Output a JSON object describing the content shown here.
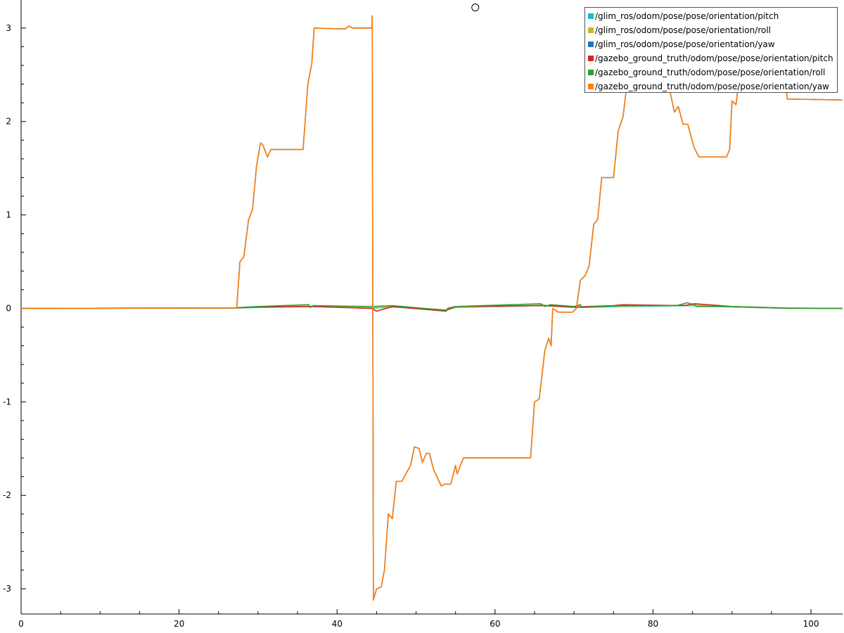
{
  "chart_data": {
    "type": "line",
    "xlim": [
      0,
      104
    ],
    "ylim": [
      -3.27,
      3.3
    ],
    "xticks": [
      0,
      20,
      40,
      60,
      80,
      100
    ],
    "yticks": [
      -3,
      -2,
      -1,
      0,
      1,
      2,
      3
    ],
    "grid": false,
    "legend_position": "top-right",
    "cursor_marker": {
      "x": 57.5,
      "y": 3.22
    },
    "series": [
      {
        "name": "/glim_ros/odom/pose/pose/orientation/pitch",
        "color": "#17becf",
        "x": [
          0,
          27,
          30,
          37,
          44.4,
          47,
          53.8,
          55,
          66,
          70,
          76,
          85,
          90,
          97,
          104
        ],
        "y": [
          0,
          0.003,
          0.01,
          0.02,
          0.0,
          0.015,
          -0.02,
          0.01,
          0.03,
          0.01,
          0.02,
          0.03,
          0.015,
          0.0,
          0.0
        ]
      },
      {
        "name": "/glim_ros/odom/pose/pose/orientation/roll",
        "color": "#bcbd22",
        "x": [
          0,
          27,
          30,
          37,
          44.4,
          47,
          53.8,
          55,
          66,
          70,
          76,
          85,
          90,
          97,
          104
        ],
        "y": [
          0,
          0.004,
          0.012,
          0.025,
          0.005,
          0.018,
          -0.015,
          0.012,
          0.035,
          0.015,
          0.025,
          0.035,
          0.018,
          0.002,
          0.0
        ]
      },
      {
        "name": "/glim_ros/odom/pose/pose/orientation/yaw",
        "color": "#1f77b4",
        "x": [
          0,
          27.3,
          27.7,
          28.2,
          28.8,
          29.3,
          29.8,
          30.3,
          30.6,
          31.2,
          31.6,
          32,
          35.7,
          36.3,
          36.8,
          37.1,
          41,
          41.5,
          42,
          44.4,
          44.45,
          44.6,
          45,
          45.6,
          46,
          46.5,
          47,
          47.5,
          48.2,
          49.3,
          49.8,
          50.4,
          50.8,
          51.3,
          51.7,
          52.2,
          53.2,
          53.6,
          54,
          54.4,
          55,
          55.2,
          56,
          64,
          64.5,
          65,
          65.6,
          66.3,
          66.8,
          67.1,
          67.3,
          68,
          69.8,
          70.3,
          70.8,
          71.4,
          71.9,
          72.5,
          73,
          73.5,
          74.2,
          75,
          75.6,
          76.2,
          76.8,
          77.3,
          77.8,
          80,
          81,
          82.2,
          82.7,
          83.2,
          83.8,
          84.4,
          85.2,
          85.8,
          86,
          86.5,
          89.3,
          89.7,
          90,
          90.5,
          91,
          91.5,
          93,
          96.7,
          97,
          104
        ],
        "y": [
          0,
          0.005,
          0.5,
          0.55,
          0.95,
          1.06,
          1.52,
          1.77,
          1.75,
          1.62,
          1.7,
          1.7,
          1.7,
          2.4,
          2.62,
          3.0,
          2.99,
          3.02,
          3.0,
          3.0,
          3.13,
          -3.12,
          -3.0,
          -2.98,
          -2.8,
          -2.2,
          -2.25,
          -1.85,
          -1.85,
          -1.68,
          -1.48,
          -1.5,
          -1.65,
          -1.55,
          -1.55,
          -1.72,
          -1.9,
          -1.88,
          -1.88,
          -1.88,
          -1.68,
          -1.77,
          -1.6,
          -1.6,
          -1.6,
          -1.0,
          -0.97,
          -0.45,
          -0.32,
          -0.4,
          0.0,
          -0.04,
          -0.04,
          0.0,
          0.3,
          0.35,
          0.45,
          0.9,
          0.95,
          1.4,
          1.4,
          1.4,
          1.9,
          2.05,
          2.47,
          2.6,
          2.98,
          2.98,
          2.98,
          2.3,
          2.1,
          2.16,
          1.97,
          1.97,
          1.72,
          1.62,
          1.62,
          1.62,
          1.62,
          1.7,
          2.22,
          2.18,
          2.52,
          2.48,
          2.48,
          2.48,
          2.24,
          2.23
        ]
      },
      {
        "name": "/gazebo_ground_truth/odom/pose/pose/orientation/pitch",
        "color": "#d62728",
        "x": [
          0,
          27,
          30,
          37,
          44.4,
          45,
          47,
          53.8,
          54,
          55,
          66,
          70,
          75,
          76.2,
          84,
          85.2,
          90,
          97,
          104
        ],
        "y": [
          0,
          0.005,
          0.015,
          0.02,
          0.0,
          -0.03,
          0.02,
          -0.03,
          0.0,
          0.02,
          0.03,
          0.015,
          0.03,
          0.04,
          0.03,
          0.05,
          0.02,
          0.003,
          0.0
        ]
      },
      {
        "name": "/gazebo_ground_truth/odom/pose/pose/orientation/roll",
        "color": "#2ca02c",
        "x": [
          0,
          27,
          30,
          36.4,
          36.6,
          37,
          44.4,
          47,
          53.8,
          55,
          65.8,
          66.3,
          67,
          70,
          70.8,
          71,
          76,
          83,
          84.3,
          85.2,
          85.5,
          90,
          97,
          104
        ],
        "y": [
          0,
          0.006,
          0.02,
          0.04,
          0.01,
          0.03,
          0.02,
          0.03,
          -0.02,
          0.02,
          0.05,
          0.02,
          0.04,
          0.02,
          0.04,
          0.01,
          0.03,
          0.03,
          0.06,
          0.04,
          0.02,
          0.02,
          0.004,
          0.0
        ]
      },
      {
        "name": "/gazebo_ground_truth/odom/pose/pose/orientation/yaw",
        "color": "#ff7f0e",
        "x": [
          0,
          27.3,
          27.7,
          28.2,
          28.8,
          29.3,
          29.8,
          30.3,
          30.6,
          31.2,
          31.6,
          32,
          35.7,
          36.3,
          36.8,
          37.1,
          41,
          41.5,
          42,
          44.4,
          44.45,
          44.6,
          45,
          45.6,
          46,
          46.5,
          47,
          47.5,
          48.2,
          49.3,
          49.8,
          50.4,
          50.8,
          51.3,
          51.7,
          52.2,
          53.2,
          53.6,
          54,
          54.4,
          55,
          55.2,
          56,
          64,
          64.5,
          65,
          65.6,
          66.3,
          66.8,
          67.1,
          67.3,
          68,
          69.8,
          70.3,
          70.8,
          71.4,
          71.9,
          72.5,
          73,
          73.5,
          74.2,
          75,
          75.6,
          76.2,
          76.8,
          77.3,
          77.8,
          80,
          81,
          82.2,
          82.7,
          83.2,
          83.8,
          84.4,
          85.2,
          85.8,
          86,
          86.5,
          89.3,
          89.7,
          90,
          90.5,
          91,
          91.5,
          93,
          96.7,
          97,
          104
        ],
        "y": [
          0,
          0.005,
          0.5,
          0.55,
          0.95,
          1.06,
          1.52,
          1.77,
          1.75,
          1.62,
          1.7,
          1.7,
          1.7,
          2.4,
          2.62,
          3.0,
          2.99,
          3.02,
          3.0,
          3.0,
          3.13,
          -3.12,
          -3.0,
          -2.98,
          -2.8,
          -2.2,
          -2.25,
          -1.85,
          -1.85,
          -1.68,
          -1.48,
          -1.5,
          -1.65,
          -1.55,
          -1.55,
          -1.72,
          -1.9,
          -1.88,
          -1.88,
          -1.88,
          -1.68,
          -1.77,
          -1.6,
          -1.6,
          -1.6,
          -1.0,
          -0.97,
          -0.45,
          -0.32,
          -0.4,
          0.0,
          -0.04,
          -0.04,
          0.0,
          0.3,
          0.35,
          0.45,
          0.9,
          0.95,
          1.4,
          1.4,
          1.4,
          1.9,
          2.05,
          2.47,
          2.6,
          2.98,
          2.98,
          2.98,
          2.3,
          2.1,
          2.16,
          1.97,
          1.97,
          1.72,
          1.62,
          1.62,
          1.62,
          1.62,
          1.7,
          2.22,
          2.18,
          2.52,
          2.48,
          2.48,
          2.48,
          2.24,
          2.23
        ]
      }
    ]
  }
}
